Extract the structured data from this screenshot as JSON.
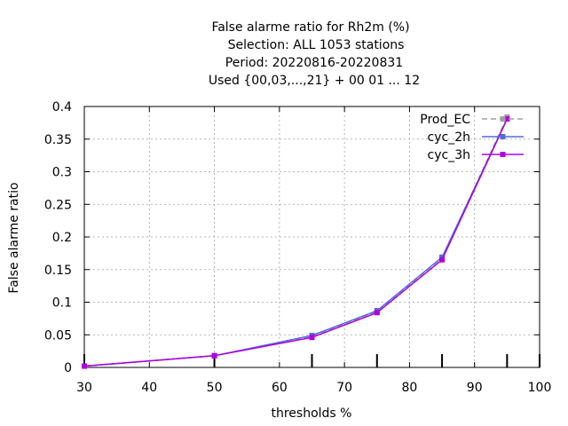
{
  "chart_data": {
    "type": "line",
    "title_lines": [
      "False alarme ratio  for Rh2m (%)",
      "Selection: ALL    1053 stations",
      "Period: 20220816-20220831",
      "Used {00,03,...,21} + 00 01 ... 12"
    ],
    "xlabel": "thresholds %",
    "ylabel": "False alarme ratio",
    "xlim": [
      30,
      100
    ],
    "ylim": [
      0,
      0.4
    ],
    "x_ticks": [
      30,
      40,
      50,
      60,
      70,
      80,
      90,
      100
    ],
    "x_tick_labels": [
      "30",
      "40",
      "50",
      "60",
      "70",
      "80",
      "90",
      "100"
    ],
    "y_ticks": [
      0,
      0.05,
      0.1,
      0.15,
      0.2,
      0.25,
      0.3,
      0.35,
      0.4
    ],
    "y_tick_labels": [
      "0",
      "0.05",
      "0.1",
      "0.15",
      "0.2",
      "0.25",
      "0.3",
      "0.35",
      "0.4"
    ],
    "grid": true,
    "legend_position": "top-right",
    "threshold_markers": [
      30,
      50,
      65,
      75,
      85,
      95,
      100
    ],
    "series": [
      {
        "name": "Prod_EC",
        "color": "#a0a0a0",
        "dashed": true,
        "x": [
          30,
          50,
          65,
          75,
          85,
          95
        ],
        "values": [
          0.002,
          0.018,
          0.048,
          0.086,
          0.168,
          0.384
        ]
      },
      {
        "name": "cyc_2h",
        "color": "#4f6fd8",
        "dashed": false,
        "x": [
          30,
          50,
          65,
          75,
          85,
          95
        ],
        "values": [
          0.002,
          0.018,
          0.049,
          0.087,
          0.169,
          0.381
        ]
      },
      {
        "name": "cyc_3h",
        "color": "#b000e0",
        "dashed": false,
        "x": [
          30,
          50,
          65,
          75,
          85,
          95
        ],
        "values": [
          0.002,
          0.018,
          0.046,
          0.084,
          0.165,
          0.381
        ]
      }
    ]
  }
}
